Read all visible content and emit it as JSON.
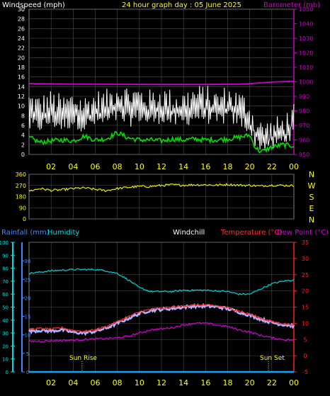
{
  "header": {
    "wind_label": "Windspeed (mph)",
    "title": "24 hour graph day : 05 June 2025",
    "baro_label": "Barometer (mb)"
  },
  "bottom_header": {
    "rain_label": "Rainfall (mm)",
    "humidity_label": "Humidity",
    "windchill_label": "Windchill",
    "temp_label": "Temperature (°C)",
    "dew_label": "Dew Point (°C)"
  },
  "sun": {
    "rise_label": "Sun Rise",
    "rise_hour": 4.8,
    "set_label": "Sun Set",
    "set_hour": 21.7
  },
  "colors": {
    "background": "#000000",
    "grid": "#505050",
    "axis_yellow": "#ffff00",
    "wind_gust": "#ffffff",
    "wind_avg": "#00e000",
    "barometer": "#cc00cc",
    "direction": "#e8e800",
    "rainfall": "#00aaff",
    "humidity": "#00c8c8",
    "windchill": "#b0b0ff",
    "temperature": "#ff3030",
    "dewpoint": "#cc00cc",
    "temp_axis": "#ff2020",
    "rain_axis": "#4488ff",
    "humidity_axis": "#00dddd"
  },
  "chart_data": [
    {
      "type": "line",
      "title": "24 hour graph day : 05 June 2025",
      "x_ticks": [
        "02",
        "04",
        "06",
        "08",
        "10",
        "12",
        "14",
        "16",
        "18",
        "20",
        "22",
        "00"
      ],
      "xlim_hours": [
        0,
        24
      ],
      "ylabel_left": "Windspeed (mph)",
      "ylim_left": [
        0,
        30
      ],
      "yticks_left": [
        "0",
        "2",
        "4",
        "6",
        "8",
        "10",
        "12",
        "14",
        "16",
        "18",
        "20",
        "22",
        "24",
        "26",
        "28",
        "30"
      ],
      "ylabel_right": "Barometer (mb)",
      "ylim_right": [
        950,
        1050
      ],
      "yticks_right": [
        "950",
        "960",
        "970",
        "980",
        "990",
        "1000",
        "1010",
        "1020",
        "1030",
        "1040",
        "1050"
      ],
      "series": [
        {
          "name": "gust",
          "hours": [
            0,
            1,
            2,
            3,
            4,
            5,
            6,
            7,
            8,
            9,
            10,
            11,
            12,
            13,
            14,
            15,
            16,
            17,
            18,
            19,
            19.8,
            20.5,
            21,
            22,
            23,
            24
          ],
          "values": [
            11,
            10,
            11,
            10,
            11,
            10,
            11,
            11,
            13,
            12,
            12,
            11,
            12,
            11,
            11,
            12,
            12,
            11,
            12,
            11,
            10,
            6,
            5,
            5,
            6,
            8
          ]
        },
        {
          "name": "speed",
          "hours": [
            0,
            1,
            2,
            3,
            4,
            5,
            6,
            7,
            8,
            9,
            10,
            11,
            12,
            13,
            14,
            15,
            16,
            17,
            18,
            19,
            19.8,
            20.5,
            21,
            22,
            23,
            24
          ],
          "values": [
            6,
            6,
            7,
            6,
            7,
            6,
            7,
            7,
            8,
            7,
            8,
            7,
            8,
            7,
            7,
            8,
            8,
            7,
            8,
            7,
            6,
            3,
            2,
            2,
            3,
            5
          ]
        },
        {
          "name": "average",
          "hours": [
            0,
            1,
            2,
            3,
            4,
            5,
            6,
            7,
            8,
            9,
            10,
            11,
            12,
            13,
            14,
            15,
            16,
            17,
            18,
            19,
            20,
            20.5,
            21,
            22,
            23,
            24
          ],
          "values": [
            3.5,
            2.5,
            2.8,
            3,
            2.8,
            3.8,
            3,
            3.2,
            4.5,
            3.4,
            3,
            3,
            2.8,
            3.2,
            3,
            3.2,
            3,
            3,
            3.2,
            3.5,
            4,
            1.5,
            0.5,
            1.5,
            2,
            1.8
          ]
        },
        {
          "name": "barometer",
          "hours": [
            0,
            4,
            8,
            12,
            16,
            19,
            20,
            21,
            22,
            24
          ],
          "values": [
            998.8,
            998.5,
            998.3,
            998.2,
            998.2,
            998.4,
            998.7,
            999.3,
            999.8,
            1000.4
          ]
        }
      ]
    },
    {
      "type": "line",
      "x_ticks": [
        "02",
        "04",
        "06",
        "08",
        "10",
        "12",
        "14",
        "16",
        "18",
        "20",
        "22",
        "00"
      ],
      "xlim_hours": [
        0,
        24
      ],
      "ylim_left": [
        0,
        360
      ],
      "yticks_left": [
        "0",
        "90",
        "180",
        "270",
        "360"
      ],
      "direction_labels": [
        "N",
        "W",
        "S",
        "E",
        "N"
      ],
      "series": [
        {
          "name": "direction",
          "hours": [
            0,
            1,
            2,
            3,
            4,
            5,
            6,
            7,
            8,
            9,
            10,
            11,
            12,
            13,
            14,
            15,
            16,
            17,
            18,
            19,
            20,
            21,
            22,
            23,
            24
          ],
          "values": [
            225,
            245,
            230,
            235,
            245,
            250,
            238,
            228,
            245,
            255,
            262,
            262,
            270,
            275,
            272,
            275,
            275,
            272,
            278,
            272,
            270,
            265,
            272,
            270,
            268
          ]
        }
      ]
    },
    {
      "type": "line",
      "x_ticks": [
        "02",
        "04",
        "06",
        "08",
        "10",
        "12",
        "14",
        "16",
        "18",
        "20",
        "22",
        "00"
      ],
      "xlim_hours": [
        0,
        24
      ],
      "ylabel_rain": "Rainfall (mm)",
      "yticks_rain": [
        "0",
        "5",
        "10",
        "15",
        "20",
        "25",
        "30"
      ],
      "ylim_rain": [
        0,
        35
      ],
      "ylabel_humidity": "Humidity",
      "yticks_humidity": [
        "0",
        "10",
        "20",
        "30",
        "40",
        "50",
        "60",
        "70",
        "80",
        "90",
        "100"
      ],
      "ylim_humidity": [
        0,
        100
      ],
      "ylabel_temp": "Temperature (°C)",
      "yticks_temp": [
        "-5",
        "0",
        "5",
        "10",
        "15",
        "20",
        "25",
        "30",
        "35"
      ],
      "ylim_temp": [
        -5,
        35
      ],
      "series": [
        {
          "name": "rainfall",
          "hours": [
            0,
            24
          ],
          "values": [
            0,
            0
          ]
        },
        {
          "name": "humidity",
          "hours": [
            0,
            2,
            4,
            6,
            7,
            8,
            9,
            10,
            11,
            12,
            13,
            14,
            16,
            18,
            19,
            20,
            21,
            22,
            23,
            24
          ],
          "values": [
            76,
            78,
            79,
            79,
            78,
            76,
            71,
            65,
            62,
            62,
            62,
            63,
            63,
            62,
            60,
            60,
            64,
            68,
            70,
            71
          ]
        },
        {
          "name": "windchill",
          "hours": [
            0,
            1,
            2,
            3,
            4,
            5,
            6,
            7,
            8,
            9,
            10,
            11,
            12,
            13,
            14,
            15,
            16,
            17,
            18,
            19,
            20,
            21,
            22,
            23,
            24
          ],
          "values": [
            7.6,
            7.8,
            7.6,
            8.0,
            7.2,
            7.0,
            7.5,
            8.5,
            10.0,
            11.5,
            13.0,
            14.0,
            14.3,
            14.6,
            15.0,
            15.3,
            15.3,
            15.1,
            14.5,
            13.5,
            12.5,
            11.3,
            10.2,
            9.6,
            9.2
          ]
        },
        {
          "name": "temperature",
          "hours": [
            0,
            1,
            2,
            3,
            4,
            5,
            6,
            7,
            8,
            9,
            10,
            11,
            12,
            13,
            14,
            15,
            16,
            17,
            18,
            19,
            20,
            21,
            22,
            23,
            24
          ],
          "values": [
            8.2,
            8.4,
            8.2,
            8.6,
            7.8,
            7.5,
            8.0,
            9.0,
            10.5,
            12.0,
            13.5,
            14.3,
            14.6,
            15.0,
            15.4,
            15.6,
            15.6,
            15.4,
            14.8,
            13.8,
            12.8,
            11.6,
            10.5,
            9.9,
            9.5
          ]
        },
        {
          "name": "dewpoint",
          "hours": [
            0,
            2,
            4,
            5,
            6,
            7,
            8,
            9,
            10,
            11,
            12,
            13,
            14,
            15,
            16,
            17,
            18,
            19,
            20,
            21,
            22,
            23,
            24
          ],
          "values": [
            4.4,
            4.6,
            4.8,
            5,
            5.2,
            5.3,
            5.5,
            6,
            7,
            8,
            8.3,
            8.7,
            9.5,
            10,
            10,
            9.5,
            9,
            8,
            7.3,
            6.3,
            5.5,
            5,
            4.8
          ]
        }
      ]
    }
  ]
}
